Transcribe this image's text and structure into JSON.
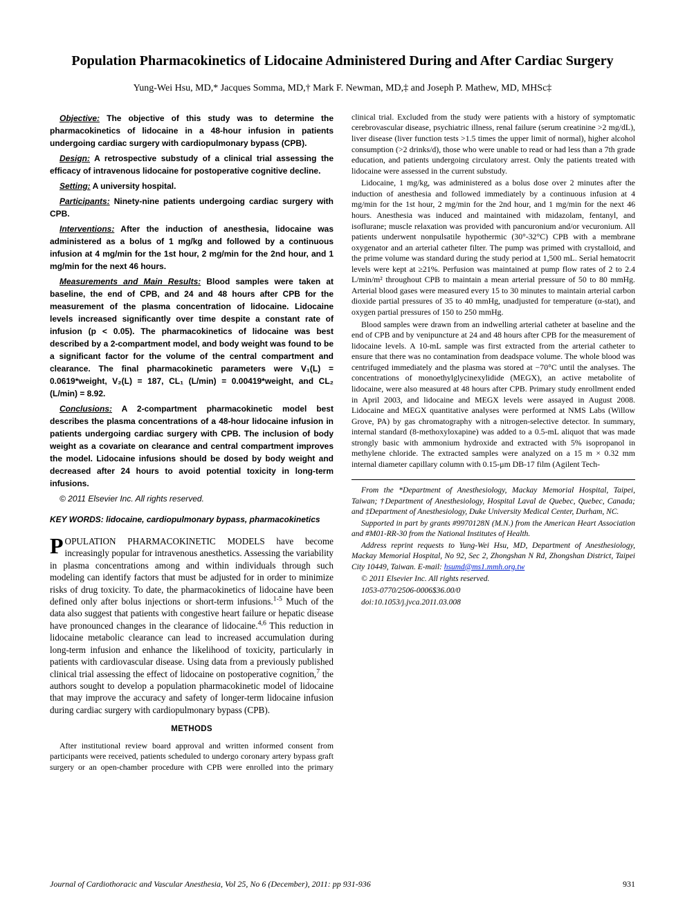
{
  "title": "Population Pharmacokinetics of Lidocaine Administered During and After Cardiac Surgery",
  "authors": "Yung-Wei Hsu, MD,* Jacques Somma, MD,† Mark F. Newman, MD,‡ and Joseph P. Mathew, MD, MHSc‡",
  "abstract": {
    "objective": {
      "label": "Objective:",
      "text": "The objective of this study was to determine the pharmacokinetics of lidocaine in a 48-hour infusion in patients undergoing cardiac surgery with cardiopulmonary bypass (CPB)."
    },
    "design": {
      "label": "Design:",
      "text": "A retrospective substudy of a clinical trial assessing the efficacy of intravenous lidocaine for postoperative cognitive decline."
    },
    "setting": {
      "label": "Setting:",
      "text": "A university hospital."
    },
    "participants": {
      "label": "Participants:",
      "text": "Ninety-nine patients undergoing cardiac surgery with CPB."
    },
    "interventions": {
      "label": "Interventions:",
      "text": "After the induction of anesthesia, lidocaine was administered as a bolus of 1 mg/kg and followed by a continuous infusion at 4 mg/min for the 1st hour, 2 mg/min for the 2nd hour, and 1 mg/min for the next 46 hours."
    },
    "results": {
      "label": "Measurements and Main Results:",
      "text": "Blood samples were taken at baseline, the end of CPB, and 24 and 48 hours after CPB for the measurement of the plasma concentration of lidocaine. Lidocaine levels increased significantly over time despite a constant rate of infusion (p < 0.05). The pharmacokinetics of lidocaine was best described by a 2-compartment model, and body weight was found to be a significant factor for the volume of the central compartment and clearance. The final pharmacokinetic parameters were V₁(L) = 0.0619*weight, V₂(L) = 187, CL₁ (L/min) = 0.00419*weight, and CL₂ (L/min) = 8.92."
    },
    "conclusions": {
      "label": "Conclusions:",
      "text": "A 2-compartment pharmacokinetic model best describes the plasma concentrations of a 48-hour lidocaine infusion in patients undergoing cardiac surgery with CPB. The inclusion of body weight as a covariate on clearance and central compartment improves the model. Lidocaine infusions should be dosed by body weight and decreased after 24 hours to avoid potential toxicity in long-term infusions."
    },
    "copyright": "© 2011 Elsevier Inc. All rights reserved."
  },
  "keywords_label": "KEY WORDS:",
  "keywords_text": "lidocaine, cardiopulmonary bypass, pharmacokinetics",
  "intro": {
    "p1_cap": "P",
    "p1_sc": "OPULATION PHARMACOKINETIC MODELS",
    "p1_rest": " have become increasingly popular for intravenous anesthetics. Assessing the variability in plasma concentrations among and within individuals through such modeling can identify factors that must be adjusted for in order to minimize risks of drug toxicity. To date, the pharmacokinetics of lidocaine have been defined only after bolus injections or short-term infusions.",
    "p1_sup": "1-5",
    "p1_cont": " Much of the data also suggest that patients with congestive heart failure or hepatic disease have pronounced changes in the clearance of lidocaine.",
    "p1_sup2": "4,6",
    "p1_cont2": " This reduction in lidocaine metabolic clearance can lead to increased accumulation during long-term infusion and enhance the likelihood of toxicity, particularly in patients with cardiovascular disease. Using data from a previously published clinical trial assessing the effect of lidocaine on postoperative cognition,",
    "p1_sup3": "7",
    "p1_cont3": " the authors sought to develop a population pharmacokinetic model of lidocaine that may improve the accuracy and safety of longer-term lidocaine infusion during cardiac surgery with cardiopulmonary bypass (CPB)."
  },
  "methods_heading": "METHODS",
  "methods": {
    "p1": "After institutional review board approval and written informed consent from participants were received, patients scheduled to undergo coronary artery bypass graft surgery or an open-chamber procedure with CPB were enrolled into the primary clinical trial. Excluded from the study were patients with a history of symptomatic cerebrovascular disease, psychiatric illness, renal failure (serum creatinine >2 mg/dL), liver disease (liver function tests >1.5 times the upper limit of normal), higher alcohol consumption (>2 drinks/d), those who were unable to read or had less than a 7th grade education, and patients undergoing circulatory arrest. Only the patients treated with lidocaine were assessed in the current substudy.",
    "p2": "Lidocaine, 1 mg/kg, was administered as a bolus dose over 2 minutes after the induction of anesthesia and followed immediately by a continuous infusion at 4 mg/min for the 1st hour, 2 mg/min for the 2nd hour, and 1 mg/min for the next 46 hours. Anesthesia was induced and maintained with midazolam, fentanyl, and isoflurane; muscle relaxation was provided with pancuronium and/or vecuronium. All patients underwent nonpulsatile hypothermic (30°-32°C) CPB with a membrane oxygenator and an arterial catheter filter. The pump was primed with crystalloid, and the prime volume was standard during the study period at 1,500 mL. Serial hematocrit levels were kept at ≥21%. Perfusion was maintained at pump flow rates of 2 to 2.4 L/min/m² throughout CPB to maintain a mean arterial pressure of 50 to 80 mmHg. Arterial blood gases were measured every 15 to 30 minutes to maintain arterial carbon dioxide partial pressures of 35 to 40 mmHg, unadjusted for temperature (α-stat), and oxygen partial pressures of 150 to 250 mmHg.",
    "p3": "Blood samples were drawn from an indwelling arterial catheter at baseline and the end of CPB and by venipuncture at 24 and 48 hours after CPB for the measurement of lidocaine levels. A 10-mL sample was first extracted from the arterial catheter to ensure that there was no contamination from deadspace volume. The whole blood was centrifuged immediately and the plasma was stored at −70°C until the analyses. The concentrations of monoethylglycinexylidide (MEGX), an active metabolite of lidocaine, were also measured at 48 hours after CPB. Primary study enrollment ended in April 2003, and lidocaine and MEGX levels were assayed in August 2008. Lidocaine and MEGX quantitative analyses were performed at NMS Labs (Willow Grove, PA) by gas chromatography with a nitrogen-selective detector. In summary, internal standard (8-methoxyloxapine) was added to a 0.5-mL aliquot that was made strongly basic with ammonium hydroxide and extracted with 5% isopropanol in methylene chloride. The extracted samples were analyzed on a 15 m × 0.32 mm internal diameter capillary column with 0.15-μm DB-17 film (Agilent Tech-"
  },
  "affiliations": {
    "p1": "From the *Department of Anesthesiology, Mackay Memorial Hospital, Taipei, Taiwan; †Department of Anesthesiology, Hospital Laval de Quebec, Quebec, Canada; and ‡Department of Anesthesiology, Duke University Medical Center, Durham, NC.",
    "p2": "Supported in part by grants #9970128N (M.N.) from the American Heart Association and #M01-RR-30 from the National Institutes of Health.",
    "p3_a": "Address reprint requests to Yung-Wei Hsu, MD, Department of Anesthesiology, Mackay Memorial Hospital, No 92, Sec 2, Zhongshan N Rd, Zhongshan District, Taipei City 10449, Taiwan. E-mail: ",
    "p3_email": "hsumd@ms1.mmh.org.tw",
    "p4": "© 2011 Elsevier Inc. All rights reserved.",
    "p5": "1053-0770/2506-0006$36.00/0",
    "p6": "doi:10.1053/j.jvca.2011.03.008"
  },
  "footer": {
    "journal": "Journal of Cardiothoracic and Vascular Anesthesia, Vol 25, No 6 (December), 2011: pp 931-936",
    "page": "931"
  }
}
